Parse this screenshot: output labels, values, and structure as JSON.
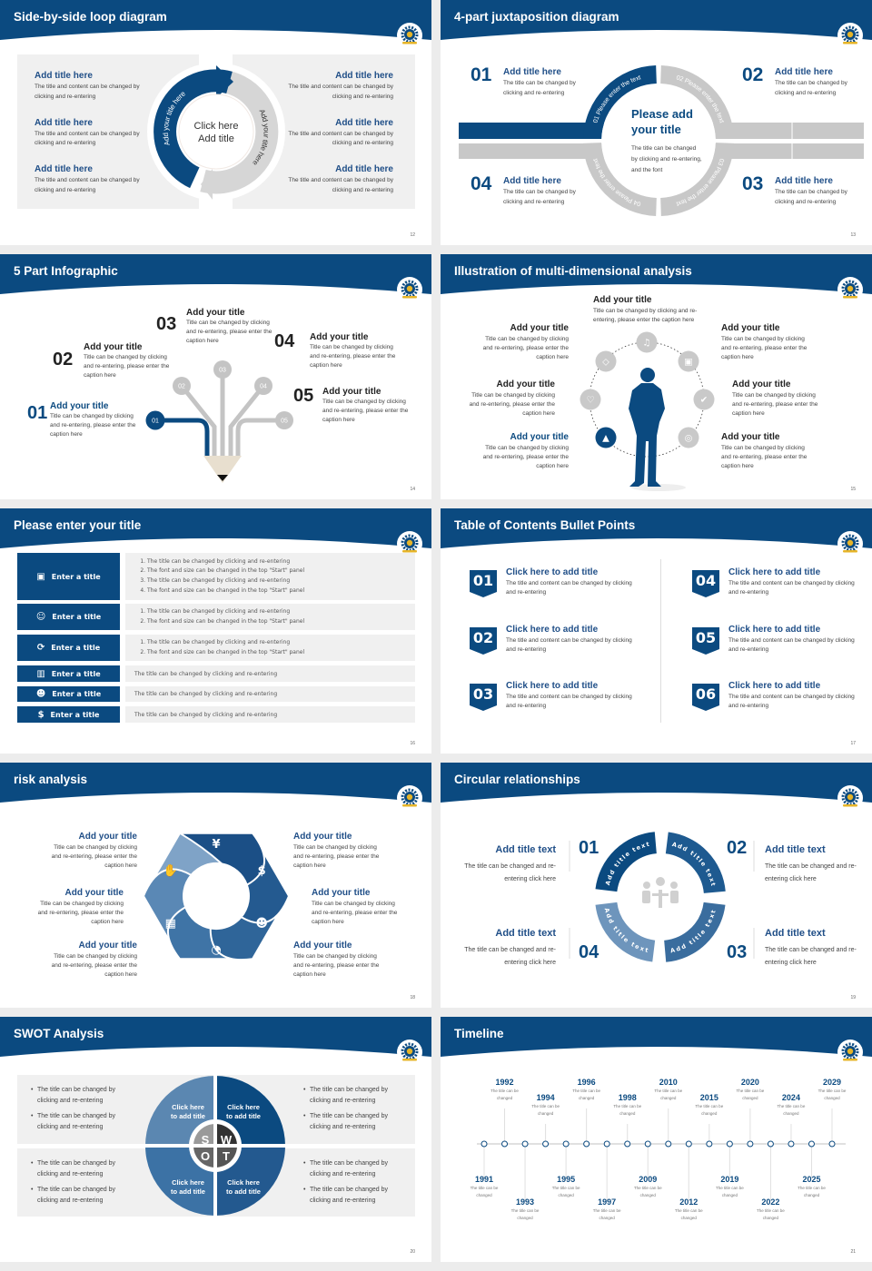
{
  "theme": {
    "primary": "#0b4a80",
    "gray": "#c8c8c8",
    "panel": "#f0f0f0",
    "title_text": "#1f4e87"
  },
  "slides": [
    {
      "title": "Side-by-side loop diagram",
      "page": "12",
      "center_line1": "Click here",
      "center_line2": "Add title",
      "arc_left": "Add your title here",
      "arc_right": "Add your title here",
      "left_items": [
        {
          "title": "Add title here",
          "desc": "The title and content can be changed by clicking and re-entering"
        },
        {
          "title": "Add title here",
          "desc": "The title and content can be changed by clicking and re-entering"
        },
        {
          "title": "Add title here",
          "desc": "The title and content can be changed by clicking and re-entering"
        }
      ],
      "right_items": [
        {
          "title": "Add title here",
          "desc": "The title and content can be changed by clicking and re-entering"
        },
        {
          "title": "Add title here",
          "desc": "The title and content can be changed by clicking and re-entering"
        },
        {
          "title": "Add title here",
          "desc": "The title and content can be changed by clicking and re-entering"
        }
      ]
    },
    {
      "title": "4-part juxtaposition diagram",
      "page": "13",
      "center_title": "Please add your title",
      "center_desc": "The title can be changed by clicking and re-entering, and the font",
      "ring_labels": [
        "01 Please enter the text",
        "02 Please enter the text",
        "03 Please enter the text",
        "04 Please enter the text"
      ],
      "items": [
        {
          "num": "01",
          "title": "Add title here",
          "desc": "The title can be changed by clicking and re-entering"
        },
        {
          "num": "02",
          "title": "Add title here",
          "desc": "The title can be changed by clicking and re-entering"
        },
        {
          "num": "03",
          "title": "Add title here",
          "desc": "The title can be changed by clicking and re-entering"
        },
        {
          "num": "04",
          "title": "Add title here",
          "desc": "The title can be changed by clicking and re-entering"
        }
      ]
    },
    {
      "title": "5 Part Infographic",
      "page": "14",
      "items": [
        {
          "num": "01",
          "title": "Add your title",
          "desc": "Title can be changed by clicking and re-entering, please enter the caption here"
        },
        {
          "num": "02",
          "title": "Add your title",
          "desc": "Title can be changed by clicking and re-entering, please enter the caption here"
        },
        {
          "num": "03",
          "title": "Add your title",
          "desc": "Title can be changed by clicking and re-entering, please enter the caption here"
        },
        {
          "num": "04",
          "title": "Add your title",
          "desc": "Title can be changed by clicking and re-entering, please enter the caption here"
        },
        {
          "num": "05",
          "title": "Add your title",
          "desc": "Title can be changed by clicking and re-entering, please enter the caption here"
        }
      ]
    },
    {
      "title": "Illustration of multi-dimensional analysis",
      "page": "15",
      "icons": [
        "bell-icon",
        "diamond-icon",
        "lock-icon",
        "heart-icon",
        "thumbs-up-icon",
        "graduation-cap-icon",
        "globe-icon"
      ],
      "items": [
        {
          "title": "Add your title",
          "desc": "Title can be changed by clicking and re-entering, please enter the caption here"
        },
        {
          "title": "Add your title",
          "desc": "Title can be changed by clicking and re-entering, please enter the caption here"
        },
        {
          "title": "Add your title",
          "desc": "Title can be changed by clicking and re-entering, please enter the caption here"
        },
        {
          "title": "Add your title",
          "desc": "Title can be changed by clicking and re-entering, please enter the caption here"
        },
        {
          "title": "Add your title",
          "desc": "Title can be changed by clicking and re-entering, please enter the caption here"
        },
        {
          "title": "Add your title",
          "desc": "Title can be changed by clicking and re-entering, please enter the caption here"
        },
        {
          "title": "Add your title",
          "desc": "Title can be changed by clicking and re-entering, please enter the caption here"
        }
      ]
    },
    {
      "title": "Please enter your title",
      "page": "16",
      "rows": [
        {
          "label": "Enter a title",
          "icon": "presentation-icon",
          "numbered": true,
          "lines": [
            "The title can be changed by clicking and re-entering",
            "The font and size can be changed in the top \"Start\" panel",
            "The title can be changed by clicking and re-entering",
            "The font and size can be changed in the top \"Start\" panel"
          ]
        },
        {
          "label": "Enter a title",
          "icon": "user-card-icon",
          "numbered": true,
          "lines": [
            "The title can be changed by clicking and re-entering",
            "The font and size can be changed in the top \"Start\" panel"
          ]
        },
        {
          "label": "Enter a title",
          "icon": "shield-refresh-icon",
          "numbered": true,
          "lines": [
            "The title can be changed by clicking and re-entering",
            "The font and size can be changed in the top \"Start\" panel"
          ]
        },
        {
          "label": "Enter a title",
          "icon": "bar-chart-icon",
          "numbered": false,
          "lines": [
            "The title can be changed by clicking and re-entering"
          ]
        },
        {
          "label": "Enter a title",
          "icon": "team-icon",
          "numbered": false,
          "lines": [
            "The title can be changed by clicking and re-entering"
          ]
        },
        {
          "label": "Enter a title",
          "icon": "hand-money-icon",
          "numbered": false,
          "lines": [
            "The title can be changed by clicking and re-entering"
          ]
        }
      ]
    },
    {
      "title": "Table of Contents Bullet Points",
      "page": "17",
      "items": [
        {
          "num": "01",
          "title": "Click here to add title",
          "desc": "The title and content can be changed by clicking and re-entering"
        },
        {
          "num": "02",
          "title": "Click here to add title",
          "desc": "The title and content can be changed by clicking and re-entering"
        },
        {
          "num": "03",
          "title": "Click here to add title",
          "desc": "The title and content can be changed by clicking and re-entering"
        },
        {
          "num": "04",
          "title": "Click here to add title",
          "desc": "The title and content can be changed by clicking and re-entering"
        },
        {
          "num": "05",
          "title": "Click here to add title",
          "desc": "The title and content can be changed by clicking and re-entering"
        },
        {
          "num": "06",
          "title": "Click here to add title",
          "desc": "The title and content can be changed by clicking and re-entering"
        }
      ]
    },
    {
      "title": "risk analysis",
      "page": "18",
      "icons": [
        "money-bag-icon",
        "coins-icon",
        "users-icon",
        "pie-chart-icon",
        "building-icon",
        "hand-yen-icon"
      ],
      "items": [
        {
          "title": "Add your title",
          "desc": "Title can be changed by clicking and re-entering, please enter the caption here"
        },
        {
          "title": "Add your title",
          "desc": "Title can be changed by clicking and re-entering, please enter the caption here"
        },
        {
          "title": "Add your title",
          "desc": "Title can be changed by clicking and re-entering, please enter the caption here"
        },
        {
          "title": "Add your title",
          "desc": "Title can be changed by clicking and re-entering, please enter the caption here"
        },
        {
          "title": "Add your title",
          "desc": "Title can be changed by clicking and re-entering, please enter the caption here"
        },
        {
          "title": "Add your title",
          "desc": "Title can be changed by clicking and re-entering, please enter the caption here"
        }
      ]
    },
    {
      "title": "Circular relationships",
      "page": "19",
      "ring_labels": [
        "Add title text",
        "Add title text",
        "Add title text",
        "Add title text"
      ],
      "items": [
        {
          "num": "01",
          "title": "Add title text",
          "desc": "The title can be changed and re-entering click here"
        },
        {
          "num": "02",
          "title": "Add title text",
          "desc": "The title can be changed and re-entering click here"
        },
        {
          "num": "03",
          "title": "Add title text",
          "desc": "The title can be changed and re-entering click here"
        },
        {
          "num": "04",
          "title": "Add title text",
          "desc": "The title can be changed and re-entering click here"
        }
      ]
    },
    {
      "title": "SWOT Analysis",
      "page": "20",
      "letters": [
        "S",
        "W",
        "O",
        "T"
      ],
      "quadrant_labels": [
        "Click here to add title",
        "Click here to add title",
        "Click here to add title",
        "Click here to add title"
      ],
      "bullets": [
        [
          "The title can be changed by clicking and re-entering",
          "The title can be changed by clicking and re-entering"
        ],
        [
          "The title can be changed by clicking and re-entering",
          "The title can be changed by clicking and re-entering"
        ],
        [
          "The title can be changed by clicking and re-entering",
          "The title can be changed by clicking and re-entering"
        ],
        [
          "The title can be changed by clicking and re-entering",
          "The title can be changed by clicking and re-entering"
        ]
      ]
    },
    {
      "title": "Timeline",
      "page": "21",
      "events": [
        {
          "year": "1991",
          "text": "The title can be changed"
        },
        {
          "year": "1992",
          "text": "The title can be changed"
        },
        {
          "year": "1993",
          "text": "The title can be changed"
        },
        {
          "year": "1994",
          "text": "The title can be changed"
        },
        {
          "year": "1995",
          "text": "The title can be changed"
        },
        {
          "year": "1996",
          "text": "The title can be changed"
        },
        {
          "year": "1997",
          "text": "The title can be changed"
        },
        {
          "year": "1998",
          "text": "The title can be changed"
        },
        {
          "year": "2009",
          "text": "The title can be changed"
        },
        {
          "year": "2010",
          "text": "The title can be changed"
        },
        {
          "year": "2012",
          "text": "The title can be changed"
        },
        {
          "year": "2015",
          "text": "The title can be changed"
        },
        {
          "year": "2019",
          "text": "The title can be changed"
        },
        {
          "year": "2020",
          "text": "The title can be changed"
        },
        {
          "year": "2022",
          "text": "The title can be changed"
        },
        {
          "year": "2024",
          "text": "The title can be changed"
        },
        {
          "year": "2025",
          "text": "The title can be changed"
        },
        {
          "year": "2029",
          "text": "The title can be changed"
        }
      ]
    }
  ]
}
